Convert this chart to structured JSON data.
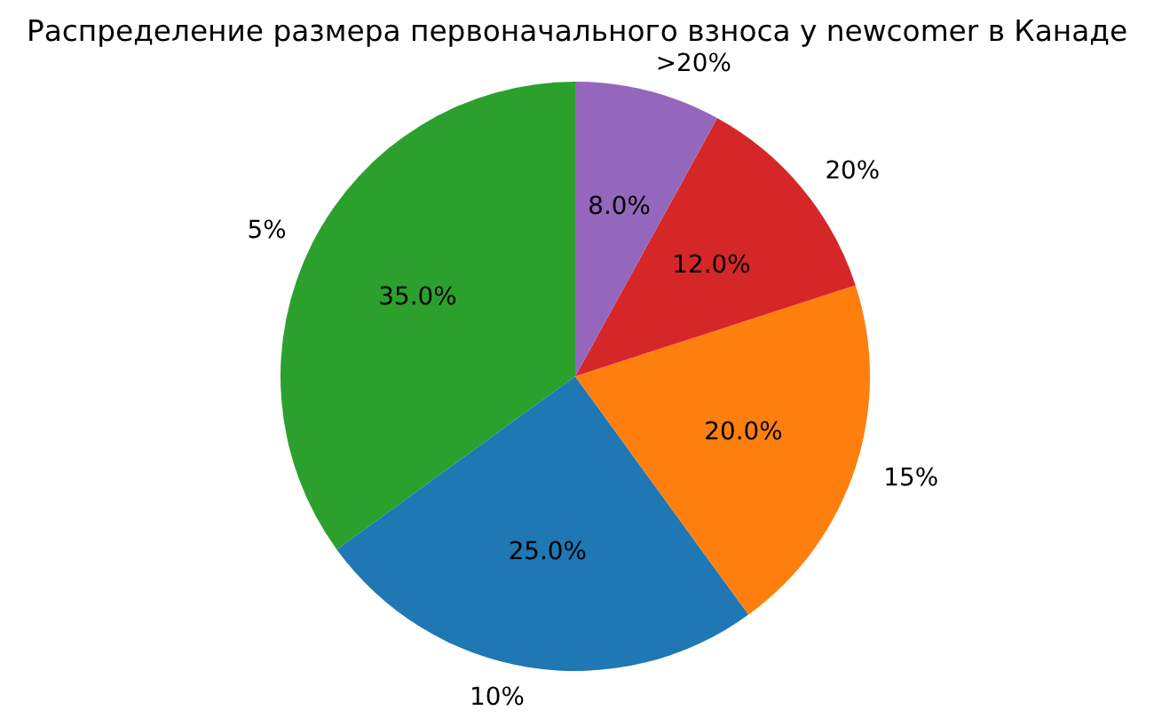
{
  "chart_data": {
    "type": "pie",
    "title": "Распределение размера первоначального взноса у newcomer в Канаде",
    "categories": [
      "5%",
      "10%",
      "15%",
      "20%",
      ">20%"
    ],
    "values": [
      35,
      25,
      20,
      12,
      8
    ],
    "colors": [
      "#2ca02c",
      "#1f77b4",
      "#ff7f0e",
      "#d62728",
      "#9467bd"
    ],
    "value_labels": [
      "35.0%",
      "25.0%",
      "20.0%",
      "12.0%",
      "8.0%"
    ]
  }
}
